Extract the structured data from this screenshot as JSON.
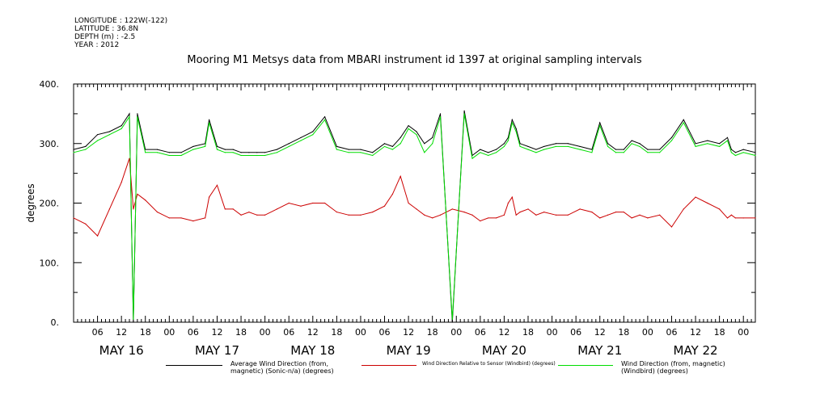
{
  "meta": {
    "longitude": "LONGITUDE : 122W(-122)",
    "latitude": "LATITUDE : 36.8N",
    "depth": "DEPTH (m) : -2.5",
    "year": "YEAR : 2012"
  },
  "chart_data": {
    "type": "line",
    "title": "Mooring M1 Metsys data from MBARI instrument id 1397 at original sampling intervals",
    "xlabel": "",
    "ylabel": "degrees",
    "ylim": [
      0,
      400
    ],
    "y_ticks": [
      "0.",
      "100.",
      "200.",
      "300.",
      "400."
    ],
    "x_range_hours": [
      0,
      171
    ],
    "x_tick_labels": [
      "06",
      "12",
      "18",
      "00",
      "06",
      "12",
      "18",
      "00",
      "06",
      "12",
      "18",
      "00",
      "06",
      "12",
      "18",
      "00",
      "06",
      "12",
      "18",
      "00",
      "06",
      "12",
      "18",
      "00",
      "06",
      "12",
      "18",
      "00"
    ],
    "day_labels": [
      "MAY 16",
      "MAY 17",
      "MAY 18",
      "MAY 19",
      "MAY 20",
      "MAY 21",
      "MAY 22"
    ],
    "grid": false,
    "legend_position": "bottom",
    "series": [
      {
        "name": "Average Wind Direction (from, magnetic) (Sonic-n/a) (degrees)",
        "color": "#000000",
        "x": [
          0,
          3,
          6,
          9,
          12,
          14,
          15,
          16,
          18,
          21,
          24,
          27,
          30,
          33,
          34,
          36,
          38,
          40,
          42,
          44,
          46,
          48,
          51,
          54,
          57,
          60,
          63,
          66,
          69,
          72,
          75,
          78,
          80,
          82,
          84,
          86,
          88,
          90,
          92,
          95,
          98,
          100,
          102,
          104,
          106,
          108,
          109,
          110,
          111,
          112,
          114,
          116,
          118,
          121,
          124,
          127,
          130,
          132,
          134,
          136,
          138,
          140,
          142,
          144,
          147,
          150,
          153,
          156,
          159,
          162,
          164,
          165,
          166,
          168,
          171
        ],
        "values": [
          290,
          295,
          315,
          320,
          330,
          350,
          0,
          350,
          290,
          290,
          285,
          285,
          295,
          300,
          340,
          295,
          290,
          290,
          285,
          285,
          285,
          285,
          290,
          300,
          310,
          320,
          345,
          295,
          290,
          290,
          285,
          300,
          295,
          310,
          330,
          320,
          300,
          310,
          350,
          0,
          355,
          280,
          290,
          285,
          290,
          300,
          310,
          340,
          325,
          300,
          295,
          290,
          295,
          300,
          300,
          295,
          290,
          335,
          300,
          290,
          290,
          305,
          300,
          290,
          290,
          310,
          340,
          300,
          305,
          300,
          310,
          290,
          285,
          290,
          285
        ]
      },
      {
        "name": "Wind Direction Relative to Sensor (Windbird) (degrees)",
        "color": "#cc0000",
        "x": [
          0,
          3,
          6,
          9,
          12,
          14,
          15,
          16,
          18,
          21,
          24,
          27,
          30,
          33,
          34,
          36,
          38,
          40,
          42,
          44,
          46,
          48,
          51,
          54,
          57,
          60,
          63,
          66,
          69,
          72,
          75,
          78,
          80,
          82,
          84,
          86,
          88,
          90,
          92,
          95,
          98,
          100,
          102,
          104,
          106,
          108,
          109,
          110,
          111,
          112,
          114,
          116,
          118,
          121,
          124,
          127,
          130,
          132,
          134,
          136,
          138,
          140,
          142,
          144,
          147,
          150,
          153,
          156,
          159,
          162,
          164,
          165,
          166,
          168,
          171
        ],
        "values": [
          175,
          165,
          145,
          190,
          235,
          275,
          190,
          215,
          205,
          185,
          175,
          175,
          170,
          175,
          210,
          230,
          190,
          190,
          180,
          185,
          180,
          180,
          190,
          200,
          195,
          200,
          200,
          185,
          180,
          180,
          185,
          195,
          215,
          245,
          200,
          190,
          180,
          175,
          180,
          190,
          185,
          180,
          170,
          175,
          175,
          180,
          200,
          210,
          180,
          185,
          190,
          180,
          185,
          180,
          180,
          190,
          185,
          175,
          180,
          185,
          185,
          175,
          180,
          175,
          180,
          160,
          190,
          210,
          200,
          190,
          175,
          180,
          175,
          175,
          175
        ]
      },
      {
        "name": "Wind Direction (from, magnetic) (Windbird) (degrees)",
        "color": "#00dd00",
        "x": [
          0,
          3,
          6,
          9,
          12,
          14,
          15,
          16,
          18,
          21,
          24,
          27,
          30,
          33,
          34,
          36,
          38,
          40,
          42,
          44,
          46,
          48,
          51,
          54,
          57,
          60,
          63,
          66,
          69,
          72,
          75,
          78,
          80,
          82,
          84,
          86,
          88,
          90,
          92,
          95,
          98,
          100,
          102,
          104,
          106,
          108,
          109,
          110,
          111,
          112,
          114,
          116,
          118,
          121,
          124,
          127,
          130,
          132,
          134,
          136,
          138,
          140,
          142,
          144,
          147,
          150,
          153,
          156,
          159,
          162,
          164,
          165,
          166,
          168,
          171
        ],
        "values": [
          285,
          290,
          305,
          315,
          325,
          345,
          5,
          345,
          285,
          285,
          280,
          280,
          290,
          295,
          335,
          290,
          285,
          285,
          280,
          280,
          280,
          280,
          285,
          295,
          305,
          315,
          340,
          290,
          285,
          285,
          280,
          295,
          290,
          300,
          325,
          315,
          285,
          300,
          345,
          5,
          350,
          275,
          285,
          280,
          285,
          295,
          305,
          335,
          320,
          295,
          290,
          285,
          290,
          295,
          295,
          290,
          285,
          330,
          295,
          285,
          285,
          300,
          295,
          285,
          285,
          305,
          335,
          295,
          300,
          295,
          305,
          285,
          280,
          285,
          280
        ]
      }
    ]
  }
}
